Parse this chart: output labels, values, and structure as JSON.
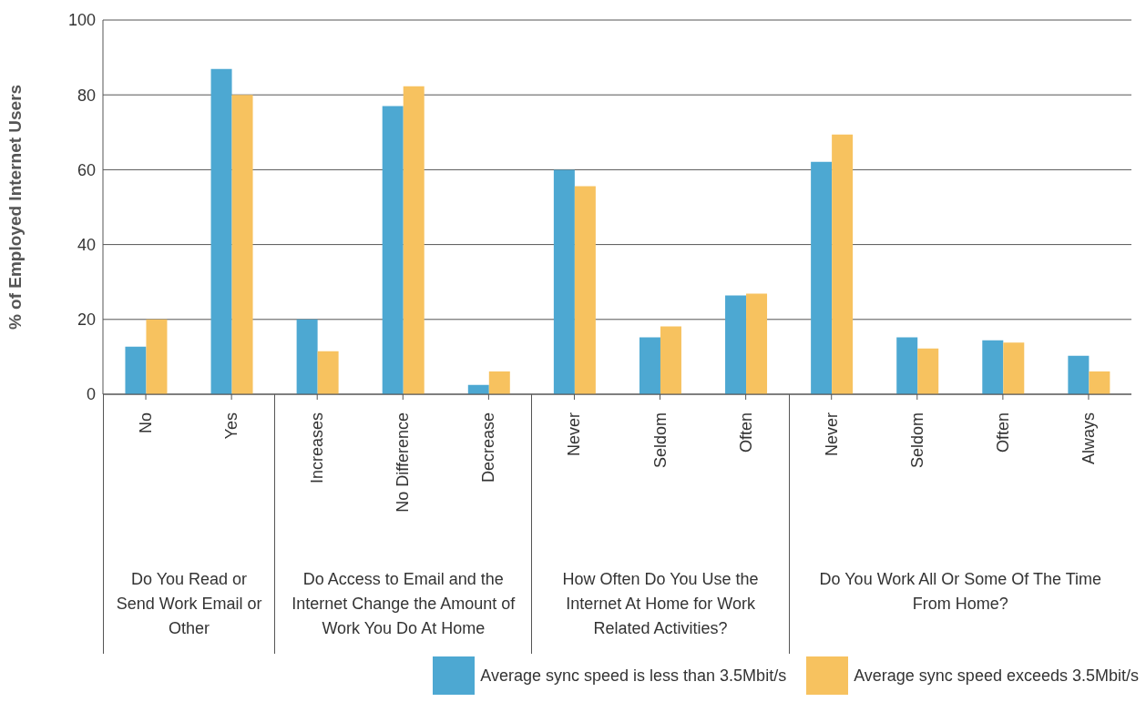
{
  "chart_data": {
    "type": "bar",
    "ylabel": "% of Employed Internet Users",
    "categories": [
      "No",
      "Yes",
      "Increases",
      "No Difference",
      "Decrease",
      "Never",
      "Seldom",
      "Often",
      "Never",
      "Seldom",
      "Often",
      "Always"
    ],
    "series": [
      {
        "name": "Average sync speed is less than 3.5Mbit/s",
        "color": "#4da8d2",
        "values": [
          12.7,
          86.9,
          20,
          77,
          2.5,
          60,
          15.2,
          26.4,
          62.1,
          15.2,
          14.4,
          10.3
        ]
      },
      {
        "name": "Average sync speed exceeds 3.5Mbit/s",
        "color": "#f7c25f",
        "values": [
          20,
          80,
          11.5,
          82.3,
          6.1,
          55.6,
          18.1,
          26.9,
          69.4,
          12.2,
          13.8,
          6.1
        ]
      }
    ],
    "annotations": [
      "Do You Read or Send Work Email or Other",
      "Do Access to Email and the Internet Change the Amount of Work You Do At Home",
      "How Often Do You Use the Internet At Home for Work Related Activities?",
      "Do You Work All Or Some Of The Time From Home?"
    ],
    "ylim": [
      0,
      100
    ],
    "yticks": [
      0,
      20,
      40,
      60,
      80,
      100
    ],
    "grid": "y",
    "legend": "bottom right"
  }
}
